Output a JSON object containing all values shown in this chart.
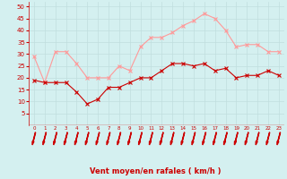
{
  "x": [
    0,
    1,
    2,
    3,
    4,
    5,
    6,
    7,
    8,
    9,
    10,
    11,
    12,
    13,
    14,
    15,
    16,
    17,
    18,
    19,
    20,
    21,
    22,
    23
  ],
  "wind_avg": [
    19,
    18,
    18,
    18,
    14,
    9,
    11,
    16,
    16,
    18,
    20,
    20,
    23,
    26,
    26,
    25,
    26,
    23,
    24,
    20,
    21,
    21,
    23,
    21
  ],
  "wind_gust": [
    29,
    18,
    31,
    31,
    26,
    20,
    20,
    20,
    25,
    23,
    33,
    37,
    37,
    39,
    42,
    44,
    47,
    45,
    40,
    33,
    34,
    34,
    31,
    31
  ],
  "bg_color": "#d4f0f0",
  "grid_color": "#c0dede",
  "avg_color": "#cc0000",
  "gust_color": "#ff9999",
  "xlabel": "Vent moyen/en rafales ( km/h )",
  "xlabel_color": "#cc0000",
  "tick_color": "#cc0000",
  "arrow_color": "#cc0000",
  "ylim": [
    0,
    52
  ],
  "yticks": [
    5,
    10,
    15,
    20,
    25,
    30,
    35,
    40,
    45,
    50
  ],
  "xlim": [
    -0.5,
    23.5
  ]
}
